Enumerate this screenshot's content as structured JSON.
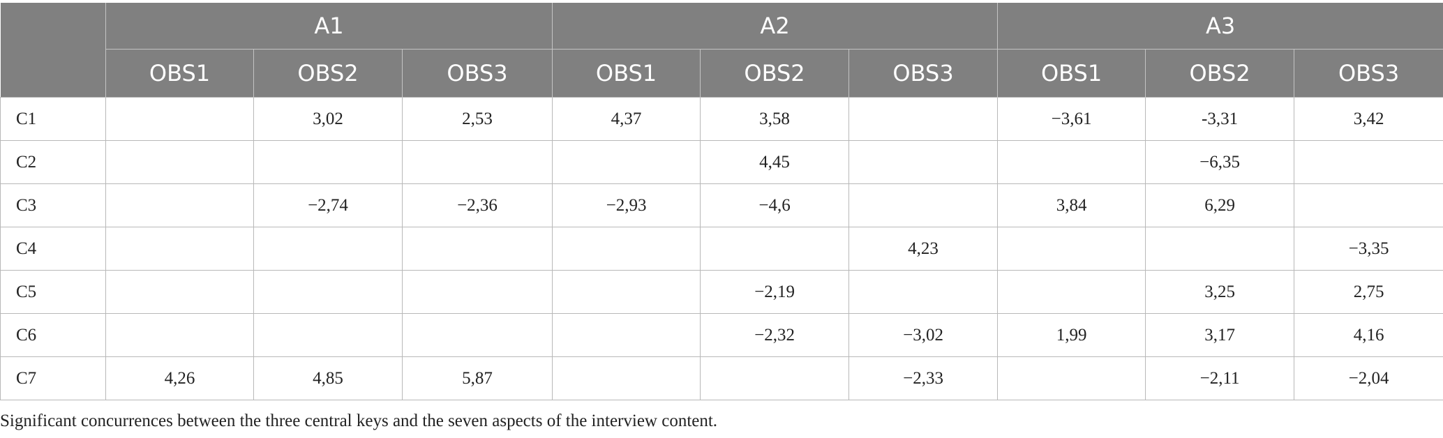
{
  "table": {
    "groups": [
      "A1",
      "A2",
      "A3"
    ],
    "subheaders": [
      "OBS1",
      "OBS2",
      "OBS3",
      "OBS1",
      "OBS2",
      "OBS3",
      "OBS1",
      "OBS2",
      "OBS3"
    ],
    "rows": [
      {
        "label": "C1",
        "cells": [
          "",
          "3,02",
          "2,53",
          "4,37",
          "3,58",
          "",
          "−3,61",
          "-3,31",
          "3,42"
        ]
      },
      {
        "label": "C2",
        "cells": [
          "",
          "",
          "",
          "",
          "4,45",
          "",
          "",
          "−6,35",
          ""
        ]
      },
      {
        "label": "C3",
        "cells": [
          "",
          "−2,74",
          "−2,36",
          "−2,93",
          "−4,6",
          "",
          "3,84",
          "6,29",
          ""
        ]
      },
      {
        "label": "C4",
        "cells": [
          "",
          "",
          "",
          "",
          "",
          "4,23",
          "",
          "",
          "−3,35"
        ]
      },
      {
        "label": "C5",
        "cells": [
          "",
          "",
          "",
          "",
          "−2,19",
          "",
          "",
          "3,25",
          "2,75"
        ]
      },
      {
        "label": "C6",
        "cells": [
          "",
          "",
          "",
          "",
          "−2,32",
          "−3,02",
          "1,99",
          "3,17",
          "4,16"
        ]
      },
      {
        "label": "C7",
        "cells": [
          "4,26",
          "4,85",
          "5,87",
          "",
          "",
          "−2,33",
          "",
          "−2,11",
          "−2,04"
        ]
      }
    ]
  },
  "caption": "Significant concurrences between the three central keys and the seven aspects of the interview content.",
  "colors": {
    "header_bg": "#808080",
    "header_text": "#ffffff",
    "grid": "#b8b8b8"
  }
}
